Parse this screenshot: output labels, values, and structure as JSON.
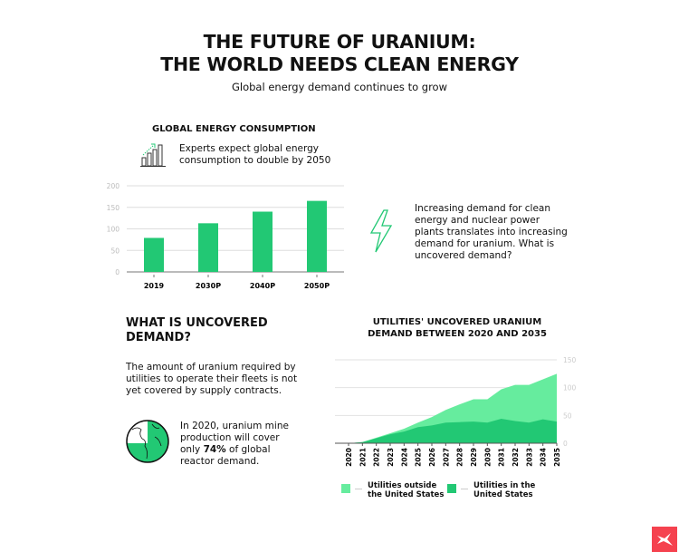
{
  "title_lines": [
    "THE FUTURE OF URANIUM:",
    "THE WORLD NEEDS CLEAN ENERGY"
  ],
  "subtitle": "Global energy demand continues to grow",
  "energy": {
    "heading": "GLOBAL ENERGY CONSUMPTION",
    "note_lines": [
      "Experts expect global energy",
      "consumption to double by 2050"
    ],
    "icon": "growth-bars-icon"
  },
  "demand_note": {
    "icon": "lightning-icon",
    "lines": [
      "Increasing demand for clean",
      "energy and nuclear power",
      "plants translates into increasing",
      "demand for uranium. What is",
      "uncovered demand?"
    ]
  },
  "uncovered": {
    "heading_lines": [
      "WHAT IS UNCOVERED",
      "DEMAND?"
    ],
    "body_lines": [
      "The amount of uranium required by",
      "utilities to operate their fleets is not",
      "yet covered by supply contracts."
    ],
    "globe_icon": "globe-icon",
    "stat_lines": [
      "In 2020, uranium mine",
      "production will cover"
    ],
    "stat_pre": "only ",
    "stat_bold": "74%",
    "stat_post": " of global",
    "stat_last": "reactor demand.",
    "coverage_fraction": 0.74
  },
  "colors": {
    "bar": "#22c874",
    "dark": "#22c874",
    "light": "#66ec9e",
    "logo": "#f5424f"
  },
  "logo_icon": "x-logo-icon",
  "chart_data": [
    {
      "type": "bar",
      "title": "GLOBAL ENERGY CONSUMPTION",
      "categories": [
        "2019",
        "2030P",
        "2040P",
        "2050P"
      ],
      "values": [
        79,
        113,
        140,
        165
      ],
      "ylim": [
        0,
        200
      ],
      "yticks": [
        "0",
        "50",
        "100",
        "150",
        "200"
      ],
      "grid": true
    },
    {
      "type": "area",
      "stacked": true,
      "title_lines": [
        "UTILITIES' UNCOVERED URANIUM",
        "DEMAND BETWEEN 2020 AND 2035"
      ],
      "x": [
        "2020",
        "2021",
        "2022",
        "2023",
        "2024",
        "2025",
        "2026",
        "2027",
        "2028",
        "2029",
        "2030",
        "2031",
        "2032",
        "2033",
        "2034",
        "2035"
      ],
      "series": [
        {
          "name": "Utilities in the United States",
          "legend_lines": [
            "Utilities in the",
            "United States"
          ],
          "values": [
            0,
            2,
            9,
            16,
            21,
            29,
            32,
            37,
            38,
            39,
            37,
            44,
            40,
            37,
            43,
            39
          ]
        },
        {
          "name": "Utilities outside the United States",
          "legend_lines": [
            "Utilities outside",
            "the United States"
          ],
          "values": [
            0,
            0,
            1,
            2,
            5,
            8,
            15,
            23,
            32,
            40,
            42,
            53,
            65,
            68,
            72,
            86
          ]
        }
      ],
      "ylim": [
        0,
        150
      ],
      "yticks": [
        "0",
        "50",
        "100",
        "150"
      ],
      "y_axis": "right",
      "grid": true,
      "legend": "bottom"
    }
  ]
}
